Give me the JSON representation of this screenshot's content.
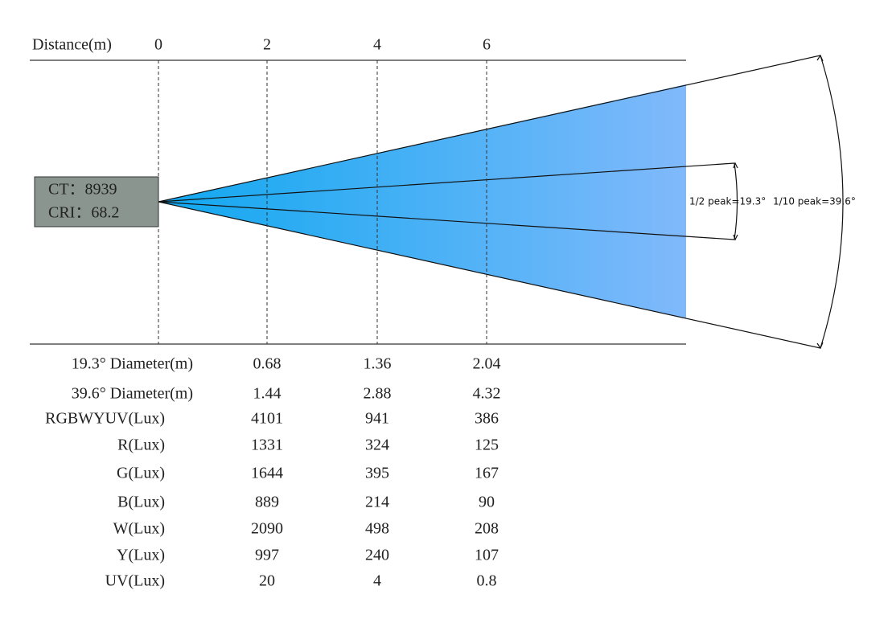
{
  "header": {
    "label": "Distance(m)",
    "ticks": [
      "0",
      "2",
      "4",
      "6"
    ]
  },
  "info": {
    "ct": "CT：8939",
    "cri": "CRI：68.2"
  },
  "angles": {
    "half_peak": "1/2 peak=19.3°",
    "tenth_peak": "1/10 peak=39.6°"
  },
  "table": {
    "rows": [
      [
        "19.3° Diameter(m)",
        "0.68",
        "1.36",
        "2.04"
      ],
      [
        "39.6° Diameter(m)",
        "1.44",
        "2.88",
        "4.32"
      ],
      [
        "RGBWYUV(Lux)",
        "4101",
        "941",
        "386"
      ],
      [
        "R(Lux)",
        "1331",
        "324",
        "125"
      ],
      [
        "G(Lux)",
        "1644",
        "395",
        "167"
      ],
      [
        "B(Lux)",
        "889",
        "214",
        "90"
      ],
      [
        "W(Lux)",
        "2090",
        "498",
        "208"
      ],
      [
        "Y(Lux)",
        "997",
        "240",
        "107"
      ],
      [
        "UV(Lux)",
        "20",
        "4",
        "0.8"
      ]
    ]
  }
}
